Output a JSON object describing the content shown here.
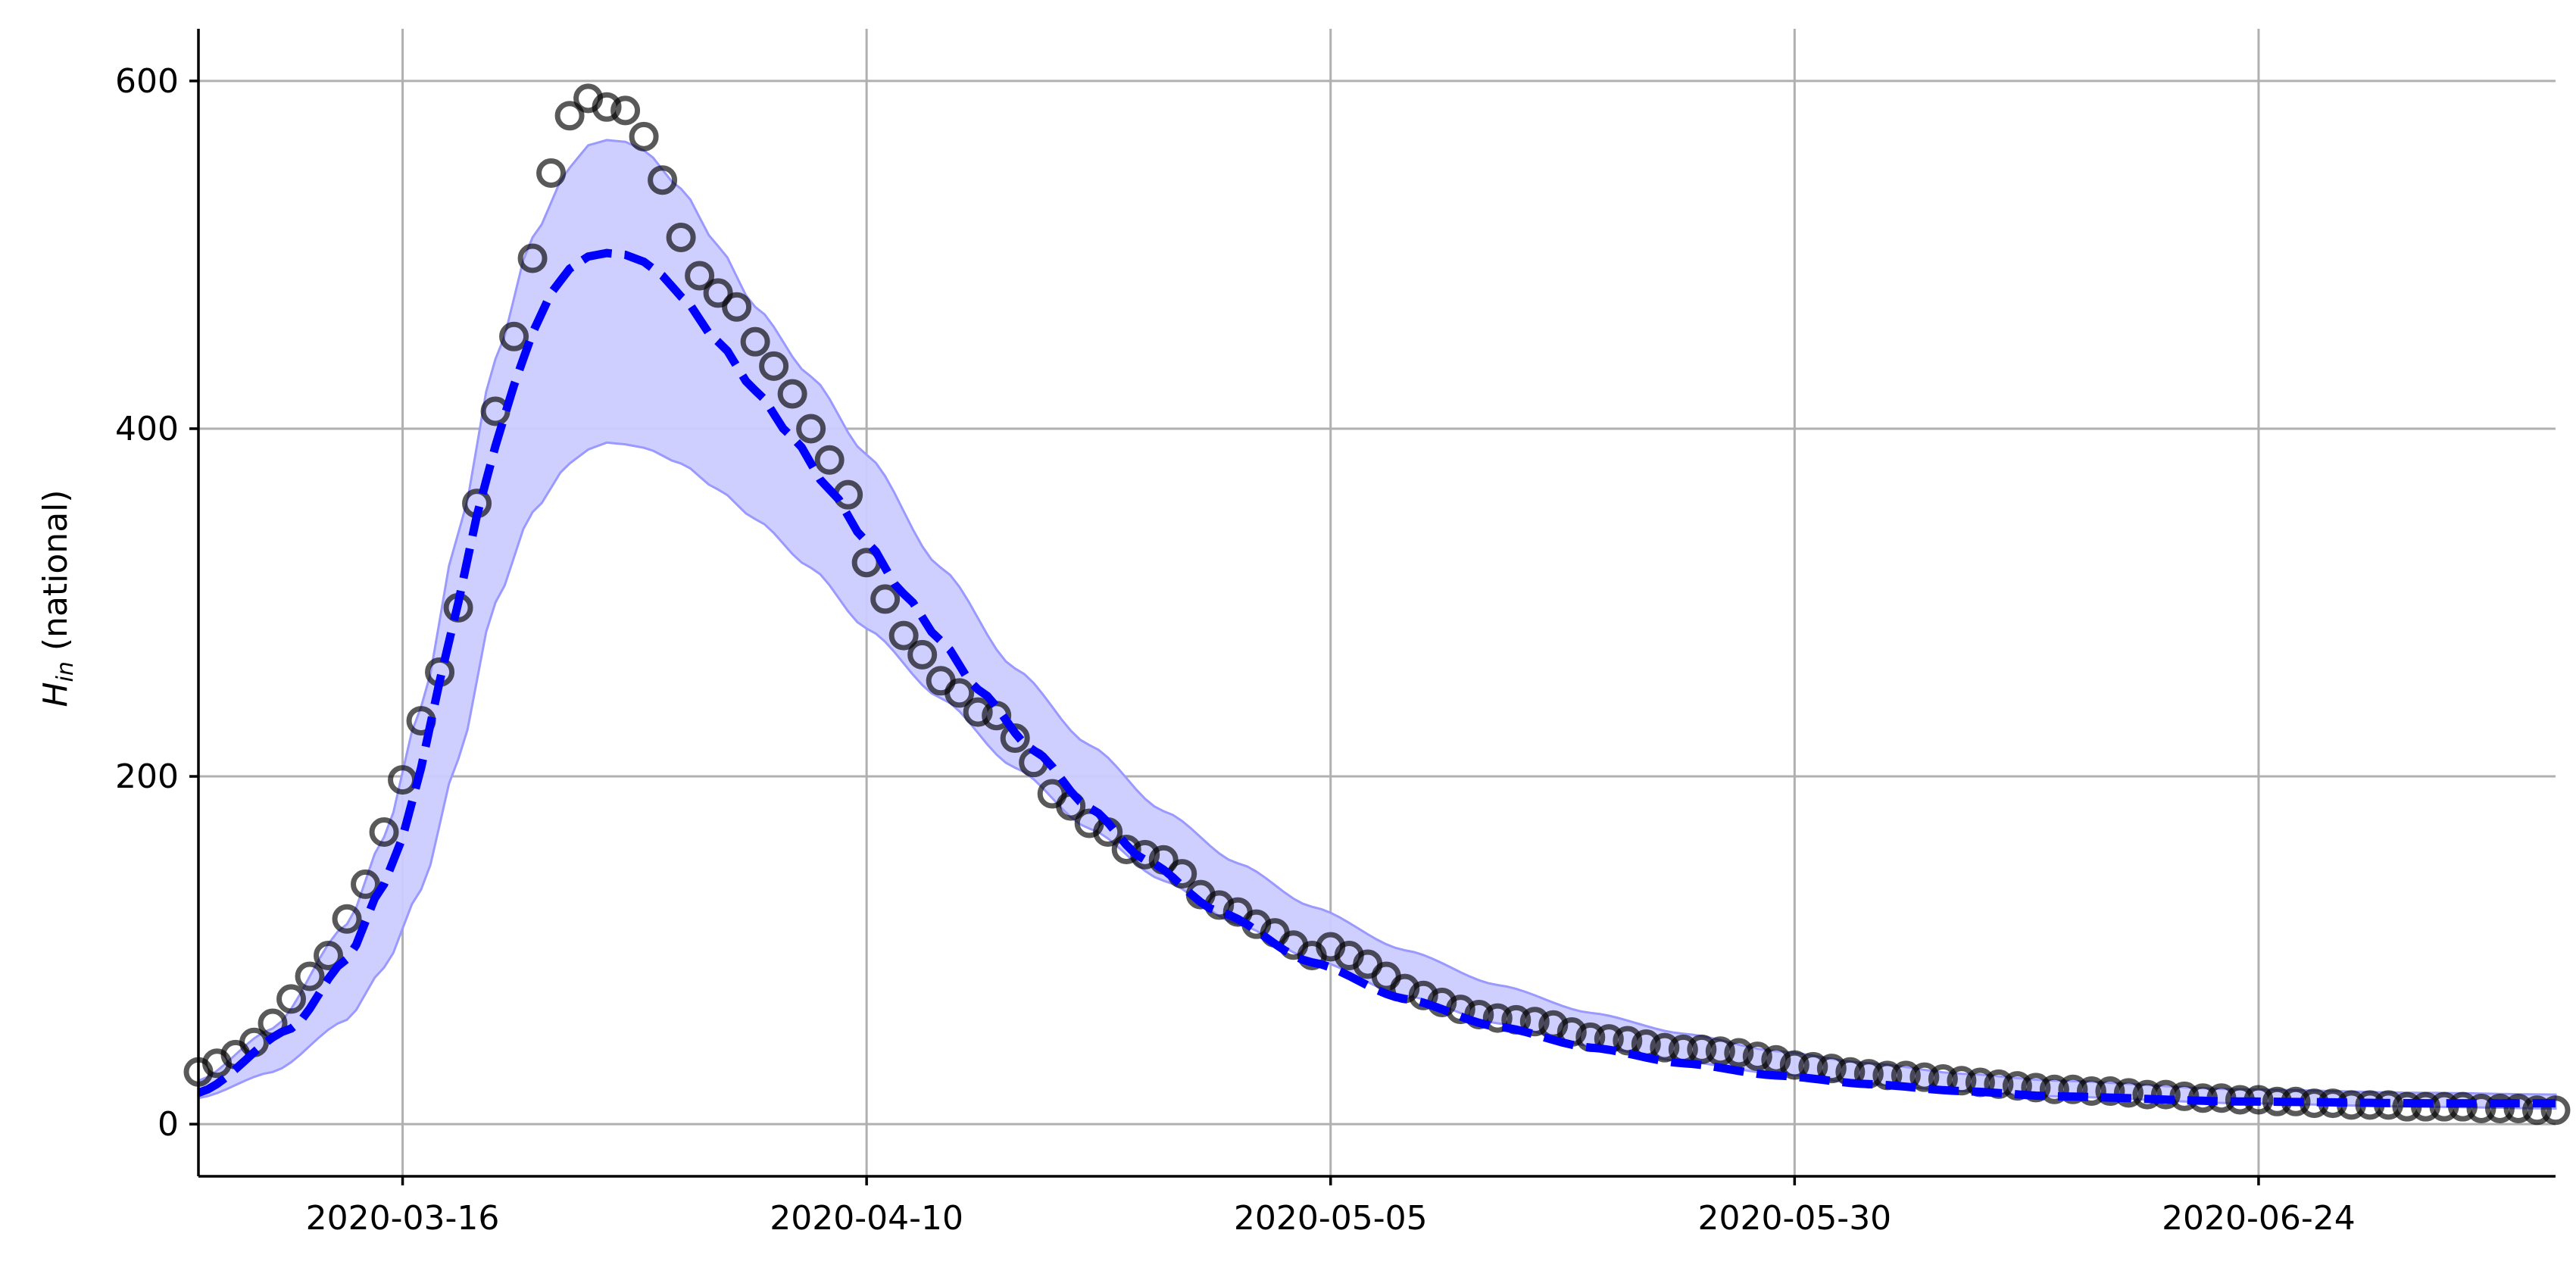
{
  "chart_data": {
    "type": "line",
    "ylabel_main": "H",
    "ylabel_sub": "in",
    "ylabel_rest": " (national)",
    "xlabel": "",
    "ylim": [
      -30,
      630
    ],
    "xlim_start": "2020-03-05",
    "xlim_end": "2020-07-10",
    "yticks": [
      0,
      200,
      400,
      600
    ],
    "xticks": [
      "2020-03-16",
      "2020-04-10",
      "2020-05-05",
      "2020-05-30",
      "2020-06-24"
    ],
    "grid": true,
    "colors": {
      "model": "#0000ff",
      "band": "#ccccff",
      "band_edge": "#9999ff",
      "points": "#000000"
    },
    "observed": {
      "start_date": "2020-03-05",
      "values": [
        30,
        35,
        40,
        47,
        58,
        72,
        85,
        97,
        118,
        138,
        168,
        198,
        232,
        260,
        297,
        357,
        410,
        453,
        498,
        547,
        580,
        590,
        585,
        583,
        568,
        543,
        510,
        488,
        478,
        470,
        450,
        436,
        420,
        400,
        382,
        362,
        323,
        302,
        281,
        270,
        255,
        248,
        237,
        235,
        222,
        208,
        190,
        183,
        173,
        168,
        158,
        155,
        152,
        144,
        132,
        126,
        122,
        115,
        110,
        103,
        97,
        102,
        97,
        92,
        85,
        78,
        74,
        70,
        66,
        63,
        61,
        60,
        59,
        57,
        53,
        50,
        49,
        48,
        46,
        44,
        43,
        43,
        42,
        41,
        39,
        37,
        34,
        33,
        32,
        30,
        29,
        28,
        28,
        27,
        26,
        25,
        24,
        23,
        22,
        21,
        20,
        20,
        19,
        19,
        18,
        17,
        17,
        16,
        15,
        15,
        14,
        14,
        13,
        13,
        12,
        12,
        11,
        11,
        11,
        10,
        10,
        10,
        10,
        9,
        9,
        9,
        8,
        8
      ]
    },
    "model": {
      "start_date": "2020-03-05",
      "keypoints": [
        [
          0,
          18
        ],
        [
          5,
          55
        ],
        [
          8,
          95
        ],
        [
          10,
          138
        ],
        [
          11,
          165
        ],
        [
          12,
          205
        ],
        [
          13,
          255
        ],
        [
          14,
          300
        ],
        [
          15,
          350
        ],
        [
          16,
          390
        ],
        [
          17,
          425
        ],
        [
          18,
          455
        ],
        [
          19,
          478
        ],
        [
          20,
          492
        ],
        [
          21,
          499
        ],
        [
          22,
          501
        ],
        [
          23,
          500
        ],
        [
          24,
          496
        ],
        [
          25,
          488
        ],
        [
          26,
          476
        ],
        [
          28,
          450
        ],
        [
          30,
          422
        ],
        [
          32,
          395
        ],
        [
          34,
          365
        ],
        [
          36,
          335
        ],
        [
          38,
          305
        ],
        [
          40,
          278
        ],
        [
          42,
          250
        ],
        [
          45,
          215
        ],
        [
          48,
          182
        ],
        [
          51,
          152
        ],
        [
          55,
          122
        ],
        [
          60,
          93
        ],
        [
          65,
          72
        ],
        [
          70,
          56
        ],
        [
          75,
          44
        ],
        [
          80,
          35
        ],
        [
          85,
          28
        ],
        [
          90,
          23
        ],
        [
          95,
          19
        ],
        [
          100,
          16
        ],
        [
          110,
          13
        ],
        [
          120,
          12
        ],
        [
          127,
          12
        ]
      ]
    },
    "band_upper": {
      "start_date": "2020-03-05",
      "keypoints": [
        [
          0,
          25
        ],
        [
          4,
          55
        ],
        [
          8,
          115
        ],
        [
          10,
          165
        ],
        [
          12,
          240
        ],
        [
          14,
          340
        ],
        [
          16,
          440
        ],
        [
          18,
          510
        ],
        [
          20,
          550
        ],
        [
          21,
          563
        ],
        [
          22,
          566
        ],
        [
          23,
          565
        ],
        [
          24,
          560
        ],
        [
          26,
          538
        ],
        [
          28,
          505
        ],
        [
          30,
          470
        ],
        [
          33,
          430
        ],
        [
          36,
          385
        ],
        [
          40,
          320
        ],
        [
          44,
          262
        ],
        [
          48,
          218
        ],
        [
          52,
          180
        ],
        [
          56,
          150
        ],
        [
          60,
          125
        ],
        [
          65,
          100
        ],
        [
          70,
          80
        ],
        [
          75,
          64
        ],
        [
          80,
          52
        ],
        [
          85,
          42
        ],
        [
          90,
          35
        ],
        [
          95,
          29
        ],
        [
          100,
          25
        ],
        [
          110,
          20
        ],
        [
          120,
          18
        ],
        [
          127,
          17
        ]
      ]
    },
    "band_lower": {
      "start_date": "2020-03-05",
      "keypoints": [
        [
          0,
          15
        ],
        [
          4,
          30
        ],
        [
          8,
          60
        ],
        [
          10,
          90
        ],
        [
          12,
          135
        ],
        [
          14,
          210
        ],
        [
          16,
          300
        ],
        [
          18,
          352
        ],
        [
          20,
          380
        ],
        [
          21,
          388
        ],
        [
          22,
          392
        ],
        [
          23,
          391
        ],
        [
          24,
          389
        ],
        [
          26,
          380
        ],
        [
          28,
          365
        ],
        [
          30,
          348
        ],
        [
          33,
          320
        ],
        [
          36,
          285
        ],
        [
          40,
          245
        ],
        [
          44,
          205
        ],
        [
          48,
          170
        ],
        [
          52,
          140
        ],
        [
          56,
          115
        ],
        [
          60,
          95
        ],
        [
          65,
          74
        ],
        [
          70,
          58
        ],
        [
          75,
          45
        ],
        [
          80,
          36
        ],
        [
          85,
          29
        ],
        [
          90,
          23
        ],
        [
          95,
          19
        ],
        [
          100,
          16
        ],
        [
          110,
          12
        ],
        [
          120,
          10
        ],
        [
          127,
          9
        ]
      ]
    }
  }
}
